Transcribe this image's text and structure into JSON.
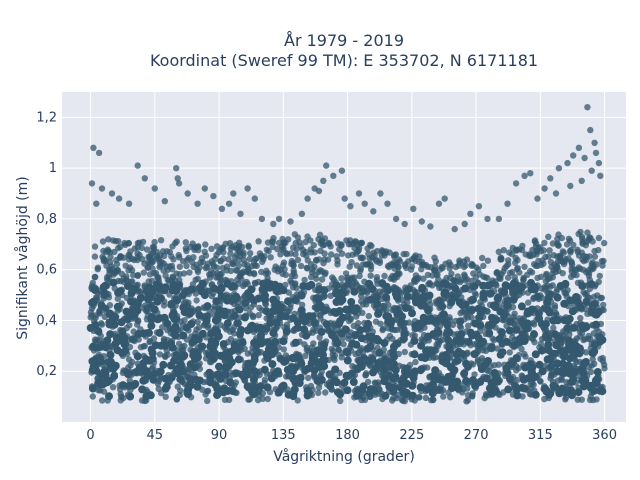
{
  "chart_data": {
    "type": "scatter",
    "title_line1": "År 1979 - 2019",
    "title_line2": "Koordinat (Sweref 99 TM): E 353702, N 6171181",
    "xlabel": "Vågriktning (grader)",
    "ylabel": "Signifikant våghöjd (m)",
    "xlim": [
      -20,
      375
    ],
    "ylim": [
      0,
      1.3
    ],
    "x_ticks": [
      0,
      45,
      90,
      135,
      180,
      225,
      270,
      315,
      360
    ],
    "x_tick_labels": [
      "0",
      "45",
      "90",
      "135",
      "180",
      "225",
      "270",
      "315",
      "360"
    ],
    "y_ticks": [
      0.2,
      0.4,
      0.6,
      0.8,
      1.0,
      1.2
    ],
    "y_tick_labels": [
      "0,2",
      "0,4",
      "0,6",
      "0,8",
      "1",
      "1,2"
    ],
    "grid": true,
    "marker_color": "#34586e",
    "plot_background": "#e5e8f0",
    "dense_band": {
      "y_min": 0.08,
      "y_upper_by_x": [
        [
          0,
          0.72
        ],
        [
          45,
          0.72
        ],
        [
          90,
          0.7
        ],
        [
          135,
          0.74
        ],
        [
          160,
          0.74
        ],
        [
          180,
          0.72
        ],
        [
          225,
          0.66
        ],
        [
          250,
          0.64
        ],
        [
          270,
          0.64
        ],
        [
          300,
          0.7
        ],
        [
          340,
          0.76
        ],
        [
          360,
          0.74
        ]
      ]
    },
    "outliers": [
      [
        2,
        1.08
      ],
      [
        6,
        1.06
      ],
      [
        1,
        0.94
      ],
      [
        4,
        0.86
      ],
      [
        8,
        0.92
      ],
      [
        15,
        0.9
      ],
      [
        20,
        0.88
      ],
      [
        27,
        0.86
      ],
      [
        33,
        1.01
      ],
      [
        38,
        0.96
      ],
      [
        45,
        0.92
      ],
      [
        52,
        0.87
      ],
      [
        60,
        1.0
      ],
      [
        61,
        0.96
      ],
      [
        62,
        0.94
      ],
      [
        68,
        0.9
      ],
      [
        75,
        0.86
      ],
      [
        80,
        0.92
      ],
      [
        86,
        0.89
      ],
      [
        92,
        0.84
      ],
      [
        97,
        0.86
      ],
      [
        100,
        0.9
      ],
      [
        105,
        0.82
      ],
      [
        110,
        0.92
      ],
      [
        115,
        0.88
      ],
      [
        120,
        0.8
      ],
      [
        128,
        0.78
      ],
      [
        132,
        0.8
      ],
      [
        140,
        0.79
      ],
      [
        148,
        0.82
      ],
      [
        152,
        0.88
      ],
      [
        157,
        0.92
      ],
      [
        160,
        0.91
      ],
      [
        163,
        0.95
      ],
      [
        165,
        1.01
      ],
      [
        170,
        0.97
      ],
      [
        176,
        0.99
      ],
      [
        178,
        0.88
      ],
      [
        182,
        0.85
      ],
      [
        188,
        0.9
      ],
      [
        192,
        0.86
      ],
      [
        198,
        0.83
      ],
      [
        203,
        0.9
      ],
      [
        208,
        0.86
      ],
      [
        214,
        0.8
      ],
      [
        220,
        0.78
      ],
      [
        226,
        0.84
      ],
      [
        232,
        0.79
      ],
      [
        238,
        0.77
      ],
      [
        244,
        0.86
      ],
      [
        248,
        0.88
      ],
      [
        255,
        0.76
      ],
      [
        262,
        0.78
      ],
      [
        266,
        0.82
      ],
      [
        272,
        0.85
      ],
      [
        278,
        0.8
      ],
      [
        286,
        0.8
      ],
      [
        292,
        0.86
      ],
      [
        298,
        0.94
      ],
      [
        304,
        0.97
      ],
      [
        308,
        0.98
      ],
      [
        313,
        0.88
      ],
      [
        318,
        0.92
      ],
      [
        322,
        0.96
      ],
      [
        328,
        1.0
      ],
      [
        334,
        1.02
      ],
      [
        338,
        1.05
      ],
      [
        342,
        1.08
      ],
      [
        346,
        1.04
      ],
      [
        348,
        1.24
      ],
      [
        350,
        1.15
      ],
      [
        353,
        1.1
      ],
      [
        354,
        1.06
      ],
      [
        356,
        1.02
      ],
      [
        357,
        0.97
      ],
      [
        351,
        0.99
      ],
      [
        344,
        0.95
      ],
      [
        336,
        0.93
      ],
      [
        326,
        0.9
      ]
    ]
  }
}
